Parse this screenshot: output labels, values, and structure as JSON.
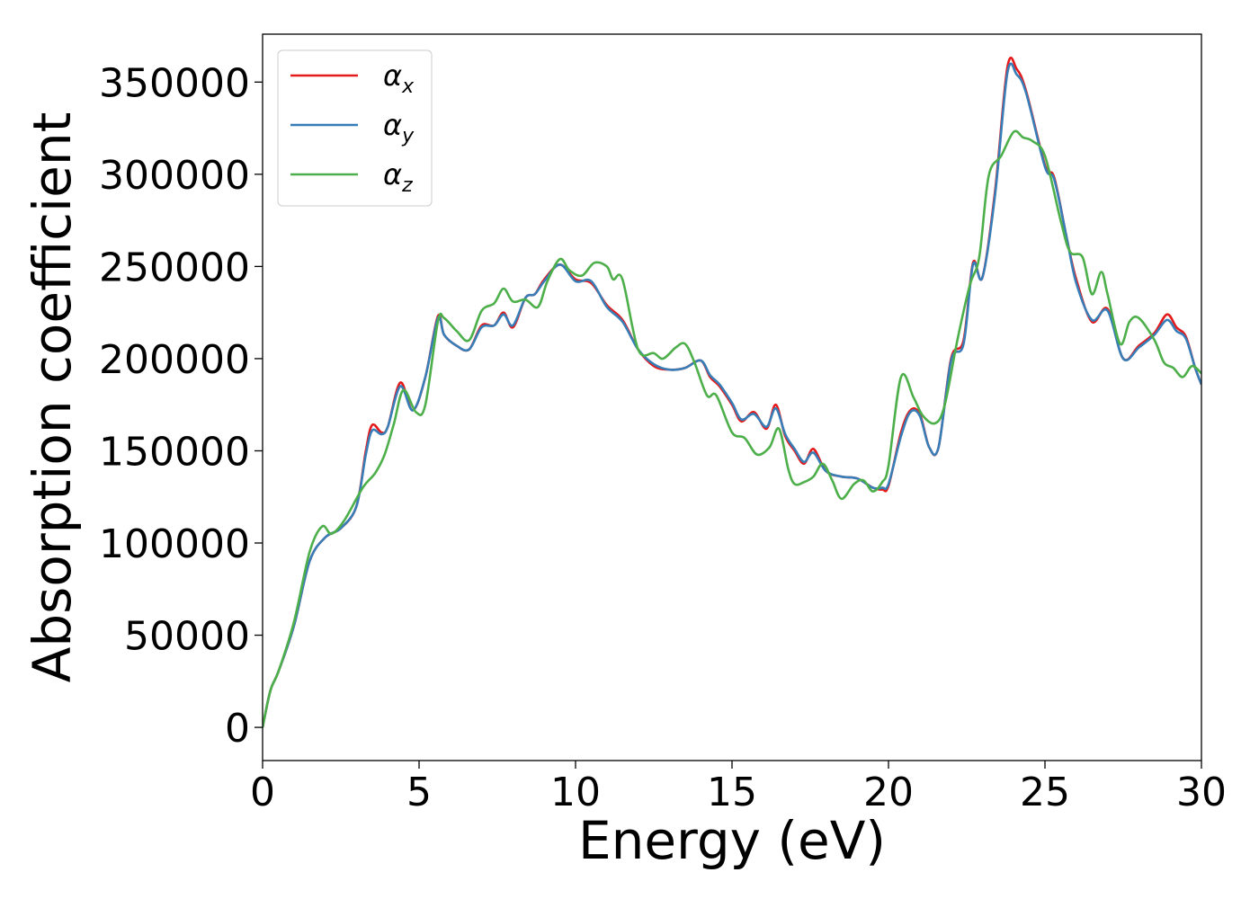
{
  "chart_data": {
    "type": "line",
    "xlabel": "Energy (eV)",
    "ylabel": "Absorption coefficient",
    "xlim": [
      0,
      30
    ],
    "ylim": [
      -18000,
      376000
    ],
    "grid": false,
    "legend_position": "top-left",
    "x_ticks": [
      "0",
      "5",
      "10",
      "15",
      "20",
      "25",
      "30"
    ],
    "y_ticks": [
      "0",
      "50000",
      "100000",
      "150000",
      "200000",
      "250000",
      "300000",
      "350000"
    ],
    "series": [
      {
        "name": "αx",
        "name_base": "α",
        "name_sub": "x",
        "color": "#e41a1c",
        "x": [
          0,
          0.25,
          0.5,
          1,
          1.5,
          2,
          2.5,
          3,
          3.3,
          3.5,
          3.8,
          4,
          4.4,
          4.8,
          5.2,
          5.6,
          5.8,
          6.2,
          6.6,
          7,
          7.4,
          7.7,
          8,
          8.4,
          8.7,
          9,
          9.5,
          10,
          10.5,
          11,
          11.5,
          12,
          12.5,
          13,
          13.5,
          14,
          14.3,
          14.6,
          15,
          15.3,
          15.7,
          16.1,
          16.4,
          16.7,
          17,
          17.3,
          17.6,
          18,
          18.5,
          19,
          19.5,
          19.8,
          20,
          20.4,
          20.7,
          21,
          21.3,
          21.6,
          22,
          22.4,
          22.7,
          23,
          23.4,
          23.8,
          24.1,
          24.4,
          25,
          25.3,
          25.7,
          26,
          26.5,
          27,
          27.5,
          28,
          28.5,
          28.9,
          29.2,
          29.5,
          29.8,
          30
        ],
        "values": [
          0,
          20000,
          30000,
          55000,
          90000,
          103000,
          108000,
          120000,
          150000,
          164000,
          160000,
          163000,
          187000,
          172000,
          190000,
          223000,
          213000,
          207000,
          205000,
          218000,
          218000,
          225000,
          217000,
          233000,
          235000,
          243000,
          251000,
          243000,
          241000,
          229000,
          221000,
          205000,
          196000,
          194000,
          195000,
          199000,
          190000,
          185000,
          175000,
          166000,
          171000,
          162000,
          175000,
          158000,
          150000,
          143000,
          151000,
          139000,
          136000,
          135000,
          130000,
          129000,
          131000,
          160000,
          172000,
          170000,
          152000,
          152000,
          200000,
          210000,
          252000,
          244000,
          290000,
          358000,
          357000,
          345000,
          305000,
          298000,
          265000,
          243000,
          220000,
          227000,
          200000,
          207000,
          214000,
          224000,
          217000,
          212000,
          195000,
          186000
        ]
      },
      {
        "name": "αy",
        "name_base": "α",
        "name_sub": "y",
        "color": "#377eb8",
        "x": [
          0,
          0.25,
          0.5,
          1,
          1.5,
          2,
          2.5,
          3,
          3.3,
          3.5,
          3.8,
          4,
          4.4,
          4.8,
          5.2,
          5.6,
          5.8,
          6.2,
          6.6,
          7,
          7.4,
          7.7,
          8,
          8.4,
          8.7,
          9,
          9.5,
          10,
          10.5,
          11,
          11.5,
          12,
          12.5,
          13,
          13.5,
          14,
          14.3,
          14.6,
          15,
          15.3,
          15.7,
          16.1,
          16.4,
          16.7,
          17,
          17.3,
          17.6,
          18,
          18.5,
          19,
          19.5,
          19.8,
          20,
          20.4,
          20.7,
          21,
          21.3,
          21.6,
          22,
          22.4,
          22.7,
          23,
          23.4,
          23.8,
          24.1,
          24.4,
          25,
          25.3,
          25.7,
          26,
          26.5,
          27,
          27.5,
          28,
          28.5,
          28.9,
          29.2,
          29.5,
          29.8,
          30
        ],
        "values": [
          0,
          20000,
          30000,
          55000,
          90000,
          103000,
          108000,
          120000,
          148000,
          161000,
          159000,
          163000,
          185000,
          172000,
          190000,
          222000,
          213000,
          207000,
          205000,
          217000,
          218000,
          224000,
          218000,
          233000,
          235000,
          242000,
          251000,
          242000,
          242000,
          228000,
          220000,
          205000,
          197000,
          194000,
          195000,
          199000,
          191000,
          186000,
          176000,
          167000,
          170000,
          163000,
          173000,
          159000,
          151000,
          144000,
          149000,
          139000,
          136000,
          135000,
          130000,
          130000,
          132000,
          158000,
          171000,
          169000,
          152000,
          152000,
          199000,
          208000,
          251000,
          244000,
          288000,
          355000,
          354000,
          344000,
          304000,
          297000,
          265000,
          241000,
          221000,
          226000,
          200000,
          206000,
          213000,
          221000,
          215000,
          211000,
          195000,
          186000
        ]
      },
      {
        "name": "αz",
        "name_base": "α",
        "name_sub": "z",
        "color": "#4daf4a",
        "x": [
          0,
          0.25,
          0.5,
          1,
          1.5,
          1.9,
          2.2,
          2.6,
          3.2,
          3.6,
          3.9,
          4.2,
          4.5,
          4.9,
          5.2,
          5.6,
          5.8,
          6.2,
          6.6,
          7,
          7.4,
          7.7,
          8,
          8.4,
          8.8,
          9.1,
          9.5,
          9.8,
          10.2,
          10.6,
          11,
          11.2,
          11.5,
          12,
          12.5,
          12.8,
          13.2,
          13.5,
          13.8,
          14.2,
          14.5,
          15,
          15.4,
          15.8,
          16.2,
          16.5,
          16.8,
          17,
          17.3,
          17.6,
          17.9,
          18.2,
          18.5,
          18.9,
          19.2,
          19.5,
          19.8,
          20,
          20.4,
          20.8,
          21.1,
          21.5,
          21.8,
          22.2,
          22.6,
          22.9,
          23.2,
          23.6,
          24,
          24.3,
          24.6,
          25,
          25.5,
          25.8,
          26.2,
          26.5,
          26.8,
          27,
          27.4,
          27.7,
          28,
          28.5,
          28.8,
          29.1,
          29.4,
          29.7,
          30
        ],
        "values": [
          0,
          20000,
          30000,
          57000,
          95000,
          109000,
          105000,
          112000,
          130000,
          138000,
          148000,
          165000,
          183000,
          171000,
          175000,
          220000,
          222000,
          215000,
          210000,
          226000,
          230000,
          238000,
          231000,
          232000,
          228000,
          242000,
          254000,
          248000,
          245000,
          252000,
          250000,
          243000,
          243000,
          205000,
          203000,
          200000,
          206000,
          208000,
          198000,
          180000,
          180000,
          160000,
          157000,
          148000,
          152000,
          162000,
          140000,
          132000,
          133000,
          136000,
          143000,
          134000,
          124000,
          132000,
          134000,
          128000,
          133000,
          142000,
          190000,
          179000,
          169000,
          165000,
          175000,
          210000,
          240000,
          255000,
          299000,
          310000,
          323000,
          320000,
          318000,
          310000,
          275000,
          258000,
          255000,
          235000,
          247000,
          235000,
          208000,
          220000,
          222000,
          210000,
          198000,
          195000,
          190000,
          196000,
          192000
        ]
      }
    ]
  }
}
